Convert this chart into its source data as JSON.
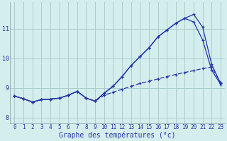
{
  "xlabel": "Graphe des températures (°c)",
  "background_color": "#d4eeee",
  "grid_color": "#aacccc",
  "line_color": "#2233aa",
  "xlim": [
    -0.5,
    23.5
  ],
  "ylim": [
    7.8,
    11.9
  ],
  "yticks": [
    8,
    9,
    10,
    11
  ],
  "ytick_labels": [
    "8",
    "9",
    "10",
    "11"
  ],
  "xticks": [
    0,
    1,
    2,
    3,
    4,
    5,
    6,
    7,
    8,
    9,
    10,
    11,
    12,
    13,
    14,
    15,
    16,
    17,
    18,
    19,
    20,
    21,
    22,
    23
  ],
  "s1_x": [
    0,
    1,
    2,
    3,
    4,
    5,
    6,
    7,
    8,
    9,
    10,
    11,
    12,
    13,
    14,
    15,
    16,
    17,
    18,
    19,
    20,
    21,
    22,
    23
  ],
  "s1_y": [
    8.72,
    8.63,
    8.52,
    8.6,
    8.62,
    8.65,
    8.75,
    8.88,
    8.65,
    8.55,
    8.82,
    9.05,
    9.38,
    9.75,
    10.05,
    10.35,
    10.72,
    10.95,
    11.18,
    11.35,
    11.48,
    11.05,
    9.8,
    9.15
  ],
  "s2_x": [
    0,
    1,
    2,
    3,
    4,
    5,
    6,
    7,
    8,
    9,
    10,
    11,
    12,
    13,
    14,
    15,
    16,
    17,
    18,
    19,
    20,
    21,
    22,
    23
  ],
  "s2_y": [
    8.72,
    8.63,
    8.52,
    8.6,
    8.62,
    8.65,
    8.75,
    8.88,
    8.65,
    8.55,
    8.82,
    9.05,
    9.38,
    9.75,
    10.05,
    10.35,
    10.72,
    10.95,
    11.18,
    11.35,
    11.22,
    10.62,
    9.6,
    9.12
  ],
  "s3_x": [
    0,
    1,
    2,
    3,
    4,
    5,
    6,
    7,
    8,
    9,
    10,
    11,
    12,
    13,
    14,
    15,
    16,
    17,
    18,
    19,
    20,
    21,
    22,
    23
  ],
  "s3_y": [
    8.72,
    8.63,
    8.52,
    8.6,
    8.62,
    8.65,
    8.75,
    8.88,
    8.65,
    8.55,
    8.75,
    8.85,
    8.95,
    9.05,
    9.15,
    9.22,
    9.3,
    9.38,
    9.45,
    9.52,
    9.58,
    9.65,
    9.7,
    9.18
  ],
  "xlabel_fontsize": 7,
  "tick_fontsize": 6
}
